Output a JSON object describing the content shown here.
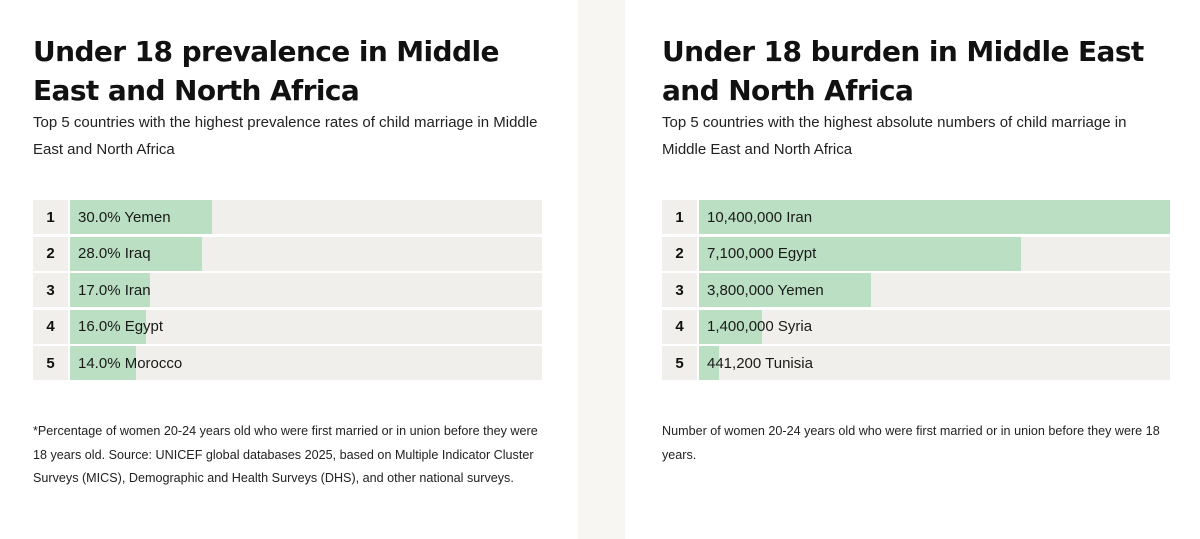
{
  "chart_data": [
    {
      "type": "bar",
      "orientation": "horizontal",
      "title": "Under 18 prevalence in Middle East and North Africa",
      "subtitle": "Top 5 countries with the highest prevalence rates of child marriage in Middle East and North Africa",
      "rows": [
        {
          "rank": "1",
          "label": "30.0% Yemen",
          "category": "Yemen",
          "value": 30.0
        },
        {
          "rank": "2",
          "label": "28.0% Iraq",
          "category": "Iraq",
          "value": 28.0
        },
        {
          "rank": "3",
          "label": "17.0% Iran",
          "category": "Iran",
          "value": 17.0
        },
        {
          "rank": "4",
          "label": "16.0% Egypt",
          "category": "Egypt",
          "value": 16.0
        },
        {
          "rank": "5",
          "label": "14.0% Morocco",
          "category": "Morocco",
          "value": 14.0
        }
      ],
      "xlim": [
        0,
        100
      ],
      "bar_color": "#badfc2",
      "track_color": "#f0efeb",
      "footnote": "*Percentage of women 20-24 years old who were first married or in union before they were 18 years old. Source: UNICEF global databases 2025, based on Multiple Indicator Cluster Surveys (MICS), Demographic and Health Surveys (DHS), and other national surveys."
    },
    {
      "type": "bar",
      "orientation": "horizontal",
      "title": "Under 18 burden in Middle East and North Africa",
      "subtitle": "Top 5 countries with the highest absolute numbers of child marriage in Middle East and North Africa",
      "rows": [
        {
          "rank": "1",
          "label": "10,400,000 Iran",
          "category": "Iran",
          "value": 10400000
        },
        {
          "rank": "2",
          "label": "7,100,000 Egypt",
          "category": "Egypt",
          "value": 7100000
        },
        {
          "rank": "3",
          "label": "3,800,000 Yemen",
          "category": "Yemen",
          "value": 3800000
        },
        {
          "rank": "4",
          "label": "1,400,000 Syria",
          "category": "Syria",
          "value": 1400000
        },
        {
          "rank": "5",
          "label": "441,200 Tunisia",
          "category": "Tunisia",
          "value": 441200
        }
      ],
      "xlim": [
        0,
        10400000
      ],
      "bar_color": "#badfc2",
      "track_color": "#f0efeb",
      "footnote": "Number of women 20-24 years old who were first married or in union before they were 18 years."
    }
  ]
}
